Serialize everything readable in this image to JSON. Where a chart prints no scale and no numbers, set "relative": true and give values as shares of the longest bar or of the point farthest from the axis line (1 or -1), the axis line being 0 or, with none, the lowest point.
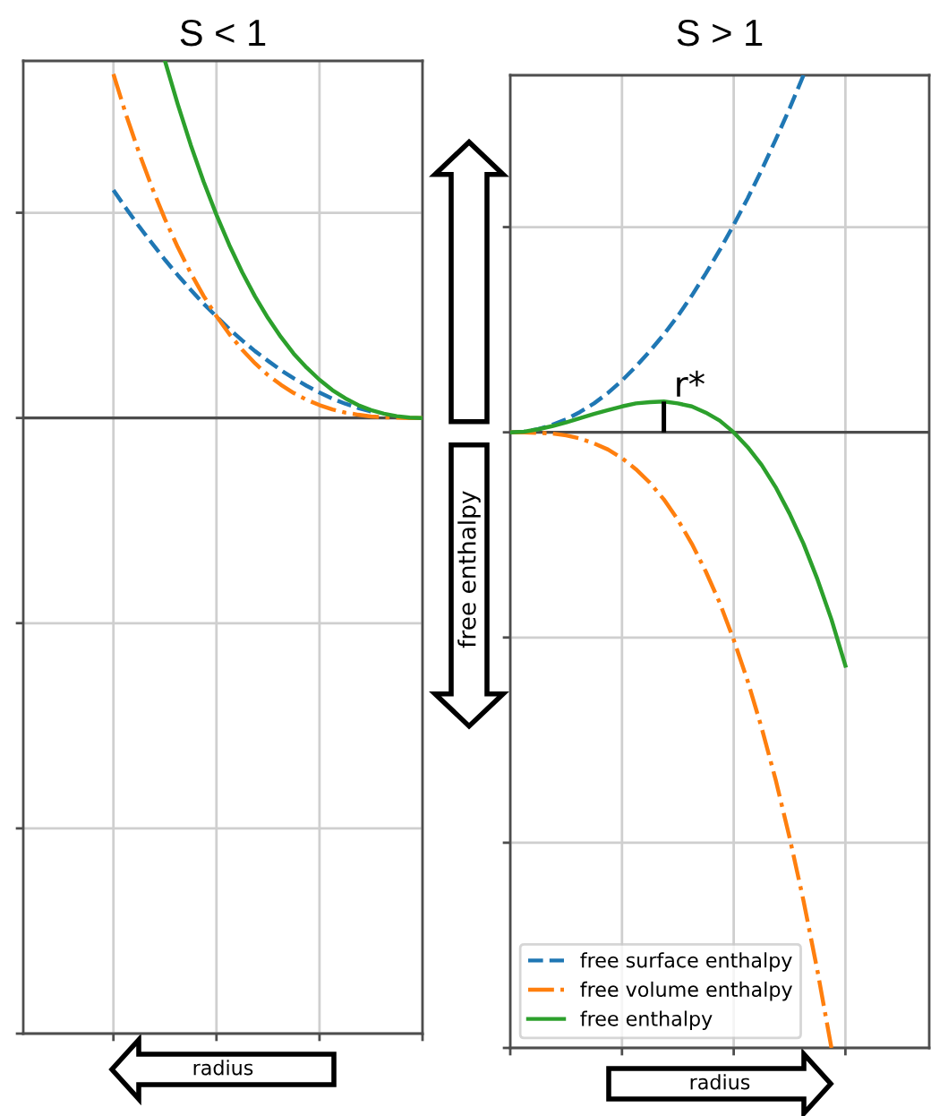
{
  "chart_data": [
    {
      "type": "line",
      "title": "S < 1",
      "xlabel": "radius",
      "relative": true,
      "grid": true,
      "categories": [
        null,
        null,
        null,
        null,
        null,
        null,
        null,
        null,
        null,
        null,
        null,
        null,
        null,
        null,
        null,
        null,
        null,
        null,
        null,
        null,
        null,
        null,
        null,
        null,
        null,
        null,
        null,
        null,
        null,
        null,
        null,
        null
      ],
      "series": [
        {
          "color": "#1f77b4",
          "line_style": "dashed",
          "values": [
            null,
            null,
            null,
            null,
            null,
            null,
            null,
            0.638,
            0.586,
            0.536,
            0.489,
            0.443,
            0.4,
            0.359,
            0.32,
            0.284,
            0.249,
            0.217,
            0.187,
            0.16,
            0.134,
            0.111,
            0.09,
            0.071,
            0.054,
            0.04,
            0.028,
            0.018,
            null,
            null,
            null,
            null
          ]
        },
        {
          "color": "#ff7f0e",
          "line_style": "dashdot",
          "values": [
            null,
            null,
            null,
            null,
            null,
            null,
            null,
            0.963,
            0.847,
            0.742,
            0.645,
            0.557,
            0.478,
            0.406,
            0.342,
            0.285,
            0.235,
            0.191,
            0.153,
            0.12,
            0.093,
            0.07,
            0.051,
            0.036,
            0.024,
            0.015,
            0.009,
            0.004,
            0.002,
            0.001,
            0,
            0
          ]
        },
        {
          "color": "#2ca02c",
          "line_style": "solid",
          "values": [
            null,
            null,
            null,
            null,
            null,
            null,
            null,
            null,
            null,
            null,
            null,
            1.0,
            0.878,
            0.765,
            0.662,
            0.569,
            0.484,
            0.408,
            0.34,
            0.28,
            0.227,
            0.18,
            0.141,
            0.107,
            0.078,
            0.055,
            0.036,
            0.022,
            0.012,
            0.005,
            0.001,
            0
          ]
        }
      ]
    },
    {
      "type": "line",
      "title": "S > 1",
      "xlabel": "radius",
      "ylabel": "free enthalpy",
      "relative": true,
      "grid": true,
      "legend": "bottom left",
      "categories": [
        null,
        null,
        null,
        null,
        null,
        null,
        null,
        null,
        null,
        null,
        null,
        null,
        null,
        null,
        null,
        null,
        null,
        null,
        null,
        null,
        null,
        null,
        null,
        null,
        null,
        null,
        null,
        null,
        null,
        null,
        null
      ],
      "series": [
        {
          "name": "free surface enthalpy",
          "color": "#1f77b4",
          "line_style": "dashed",
          "values": [
            0,
            0.001,
            0.005,
            0.012,
            0.021,
            0.033,
            0.047,
            0.064,
            0.084,
            0.107,
            0.132,
            0.159,
            0.189,
            0.222,
            0.258,
            0.296,
            0.337,
            0.38,
            0.426,
            0.475,
            0.526,
            0.58,
            null,
            null,
            null,
            null,
            null,
            null,
            null,
            null,
            null
          ]
        },
        {
          "name": "free volume enthalpy",
          "color": "#ff7f0e",
          "line_style": "dashdot",
          "values": [
            0,
            0,
            -0.001,
            -0.002,
            -0.005,
            -0.01,
            -0.018,
            -0.028,
            -0.042,
            -0.06,
            -0.082,
            -0.109,
            -0.142,
            -0.181,
            -0.226,
            -0.277,
            -0.337,
            -0.404,
            -0.48,
            -0.564,
            -0.658,
            -0.761,
            -0.875,
            -1.0,
            null,
            null,
            null,
            null,
            null,
            null,
            null
          ]
        },
        {
          "name": "free enthalpy",
          "color": "#2ca02c",
          "line_style": "solid",
          "values": [
            0,
            0.001,
            0.005,
            0.01,
            0.016,
            0.023,
            0.03,
            0.036,
            0.042,
            0.047,
            0.049,
            0.05,
            0.047,
            0.042,
            0.032,
            0.019,
            0,
            -0.024,
            -0.053,
            -0.089,
            -0.132,
            -0.181,
            -0.239,
            -0.304,
            -0.379,
            null,
            null,
            null,
            null,
            null,
            null
          ]
        }
      ],
      "annotations": [
        {
          "text": "r*",
          "y": 0.05
        }
      ]
    }
  ]
}
